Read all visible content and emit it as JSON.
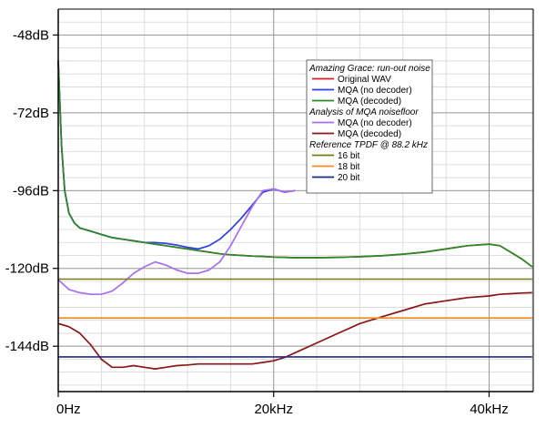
{
  "chart_data": {
    "type": "line",
    "title": "",
    "xlabel": "",
    "ylabel": "",
    "xlim": [
      0,
      44.1
    ],
    "ylim": [
      -158,
      -40
    ],
    "x_ticks": [
      {
        "value": 0,
        "label": "0Hz"
      },
      {
        "value": 20,
        "label": "20kHz"
      },
      {
        "value": 40,
        "label": "40kHz"
      }
    ],
    "y_ticks": [
      {
        "value": -48,
        "label": "-48dB"
      },
      {
        "value": -72,
        "label": "-72dB"
      },
      {
        "value": -96,
        "label": "-96dB"
      },
      {
        "value": -120,
        "label": "-120dB"
      },
      {
        "value": -144,
        "label": "-144dB"
      }
    ],
    "grid": true,
    "legend_position": "top-right",
    "legend_groups": [
      {
        "title": "Amazing Grace: run-out noise",
        "series": [
          0,
          1,
          2
        ]
      },
      {
        "title": "Analysis of MQA noisefloor",
        "series": [
          3,
          4
        ]
      },
      {
        "title": "Reference TPDF @ 88.2 kHz",
        "series": [
          5,
          6,
          7
        ]
      }
    ],
    "series": [
      {
        "name": "Original WAV",
        "color": "#d62020",
        "x": [
          0,
          0.3,
          0.6,
          1,
          1.5,
          2,
          3,
          4,
          5,
          6,
          7,
          8,
          9,
          10,
          11,
          12,
          13,
          14,
          15,
          16,
          17,
          18,
          19,
          20,
          21,
          22,
          24,
          26,
          28,
          30,
          32,
          34,
          36,
          38,
          40,
          41,
          42,
          43,
          44
        ],
        "y": [
          -56,
          -82,
          -96,
          -103,
          -106,
          -107.5,
          -108.5,
          -109.5,
          -110.5,
          -111,
          -111.5,
          -112,
          -112.5,
          -113,
          -113.5,
          -114,
          -114.5,
          -115,
          -115.5,
          -115.8,
          -116,
          -116.2,
          -116.3,
          -116.5,
          -116.6,
          -116.7,
          -116.7,
          -116.6,
          -116.4,
          -116.1,
          -115.6,
          -115,
          -114,
          -113,
          -112.5,
          -113,
          -115,
          -117,
          -119.5
        ]
      },
      {
        "name": "MQA (no decoder)",
        "color": "#2a3fe8",
        "x": [
          0,
          0.3,
          0.6,
          1,
          1.5,
          2,
          3,
          4,
          5,
          6,
          7,
          8,
          9,
          10,
          11,
          12,
          13,
          14,
          15,
          16,
          17,
          18,
          19,
          20,
          21,
          22
        ],
        "y": [
          -56,
          -82,
          -96,
          -103,
          -106,
          -107.5,
          -108.5,
          -109.5,
          -110.5,
          -111,
          -111.5,
          -112,
          -112,
          -112.3,
          -112.8,
          -113.5,
          -114,
          -113,
          -111,
          -108,
          -104.5,
          -100.5,
          -96.5,
          -95.5,
          -96.5,
          -96
        ]
      },
      {
        "name": "MQA (decoded)",
        "color": "#2a8a2a",
        "x": [
          0,
          0.3,
          0.6,
          1,
          1.5,
          2,
          3,
          4,
          5,
          6,
          7,
          8,
          9,
          10,
          11,
          12,
          13,
          14,
          15,
          16,
          17,
          18,
          19,
          20,
          21,
          22,
          24,
          26,
          28,
          30,
          32,
          34,
          36,
          38,
          40,
          41,
          42,
          43,
          44
        ],
        "y": [
          -56,
          -82,
          -96,
          -103,
          -106,
          -107.5,
          -108.5,
          -109.5,
          -110.5,
          -111,
          -111.5,
          -112,
          -112.5,
          -113,
          -113.5,
          -114,
          -114.5,
          -115,
          -115.5,
          -115.8,
          -116,
          -116.2,
          -116.3,
          -116.5,
          -116.6,
          -116.7,
          -116.7,
          -116.6,
          -116.4,
          -116.1,
          -115.6,
          -115,
          -114,
          -113,
          -112.5,
          -113,
          -115,
          -117,
          -119.5
        ]
      },
      {
        "name": "MQA (no decoder)",
        "color": "#a86ef0",
        "x": [
          0,
          0.5,
          1,
          2,
          3,
          4,
          5,
          6,
          7,
          8,
          9,
          10,
          11,
          12,
          13,
          14,
          15,
          16,
          17,
          18,
          19,
          20,
          21,
          22
        ],
        "y": [
          -123.5,
          -125,
          -126.5,
          -127.5,
          -128,
          -128,
          -127,
          -124.5,
          -121.5,
          -119.5,
          -118,
          -119,
          -120.5,
          -121.5,
          -121.5,
          -120.5,
          -118,
          -113,
          -107,
          -101,
          -96,
          -95.5,
          -96.5,
          -96
        ]
      },
      {
        "name": "MQA (decoded)",
        "color": "#8b1616",
        "x": [
          0,
          0.5,
          1,
          2,
          3,
          4,
          5,
          6,
          7,
          8,
          9,
          10,
          11,
          12,
          13,
          14,
          15,
          16,
          17,
          18,
          19,
          20,
          21,
          22,
          24,
          26,
          28,
          30,
          32,
          34,
          36,
          38,
          40,
          41,
          42,
          43,
          44
        ],
        "y": [
          -137,
          -137.5,
          -138,
          -140,
          -143.5,
          -148,
          -150.5,
          -150.5,
          -150,
          -150.5,
          -151,
          -150.5,
          -150,
          -149.8,
          -149.5,
          -149.5,
          -149.5,
          -149.5,
          -149.5,
          -149.5,
          -149,
          -148.5,
          -147.5,
          -146,
          -143,
          -140,
          -137,
          -135,
          -133,
          -131,
          -130,
          -129,
          -128.5,
          -128,
          -127.8,
          -127.6,
          -127.5
        ]
      },
      {
        "name": "16 bit",
        "color": "#7a7a10",
        "x": [
          0,
          44
        ],
        "y": [
          -123.3,
          -123.3
        ]
      },
      {
        "name": "18 bit",
        "color": "#f08a1e",
        "x": [
          0,
          44
        ],
        "y": [
          -135.3,
          -135.3
        ]
      },
      {
        "name": "20 bit",
        "color": "#1c2a88",
        "x": [
          0,
          44
        ],
        "y": [
          -147.3,
          -147.3
        ]
      }
    ]
  }
}
